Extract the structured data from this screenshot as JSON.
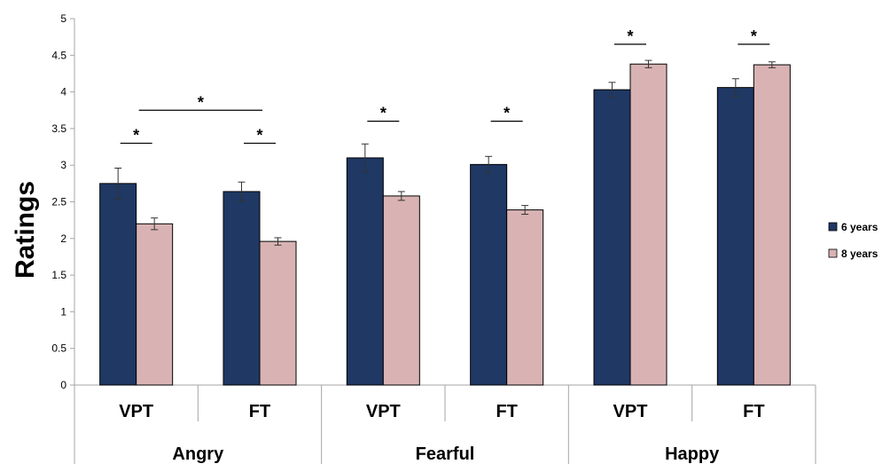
{
  "chart_data": {
    "type": "bar",
    "ylabel": "Ratings",
    "ylim": [
      0,
      5
    ],
    "yticks": [
      0,
      0.5,
      1,
      1.5,
      2,
      2.5,
      3,
      3.5,
      4,
      4.5,
      5
    ],
    "ytick_labels": [
      "0",
      "0.5",
      "1",
      "1.5",
      "2",
      "2.5",
      "3",
      "3.5",
      "4",
      "4.5",
      "5"
    ],
    "grid": false,
    "legend_position": "right",
    "groups": [
      "Angry",
      "Fearful",
      "Happy"
    ],
    "categories": [
      "VPT",
      "FT",
      "VPT",
      "FT",
      "VPT",
      "FT"
    ],
    "series": [
      {
        "name": "6 years",
        "color": "#1f3864",
        "values": [
          2.75,
          2.64,
          3.1,
          3.01,
          4.03,
          4.06
        ],
        "errors": [
          0.21,
          0.13,
          0.19,
          0.11,
          0.1,
          0.12
        ]
      },
      {
        "name": "8 years",
        "color": "#d9b3b3",
        "values": [
          2.2,
          1.96,
          2.58,
          2.39,
          4.38,
          4.37
        ],
        "errors": [
          0.08,
          0.05,
          0.06,
          0.06,
          0.05,
          0.04
        ]
      }
    ],
    "annotations": [
      {
        "text": "*",
        "type": "within",
        "category_index": 0,
        "y": 3.3
      },
      {
        "text": "*",
        "type": "within",
        "category_index": 1,
        "y": 3.3
      },
      {
        "text": "*",
        "type": "between",
        "from_index": 0,
        "to_index": 1,
        "y": 3.75
      },
      {
        "text": "*",
        "type": "within",
        "category_index": 2,
        "y": 3.6
      },
      {
        "text": "*",
        "type": "within",
        "category_index": 3,
        "y": 3.6
      },
      {
        "text": "*",
        "type": "within",
        "category_index": 4,
        "y": 4.65
      },
      {
        "text": "*",
        "type": "within",
        "category_index": 5,
        "y": 4.65
      }
    ]
  }
}
